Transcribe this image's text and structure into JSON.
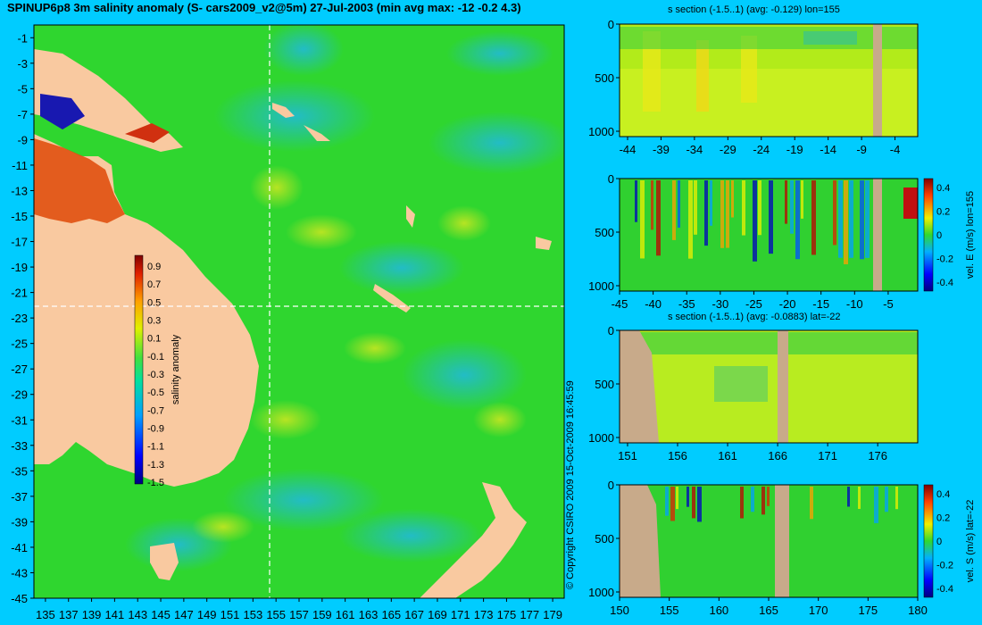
{
  "title": "SPINUP6p8 3m salinity anomaly (S- cars2009_v2@5m) 27-Jul-2003 (min avg max: -12 -0.2 4.3)",
  "copyright": "© Copyright CSIRO 2009  15-Oct-2009 16:45:59",
  "colors": {
    "background": "#00ccff",
    "land": "#f9c9a0",
    "section_land": "#c8aa8a",
    "ocean_base": "#33d633"
  },
  "chart_data": [
    {
      "type": "heatmap",
      "name": "map",
      "title": "SPINUP6p8 3m salinity anomaly (S- cars2009_v2@5m) 27-Jul-2003 (min avg max: -12 -0.2 4.3)",
      "x_ticks": [
        "135",
        "137",
        "139",
        "141",
        "143",
        "145",
        "147",
        "149",
        "151",
        "153",
        "155",
        "157",
        "159",
        "161",
        "163",
        "165",
        "167",
        "169",
        "171",
        "173",
        "175",
        "177",
        "179"
      ],
      "y_ticks": [
        "-1",
        "-3",
        "-5",
        "-7",
        "-9",
        "-11",
        "-13",
        "-15",
        "-17",
        "-19",
        "-21",
        "-23",
        "-25",
        "-27",
        "-29",
        "-31",
        "-33",
        "-35",
        "-37",
        "-39",
        "-41",
        "-43",
        "-45"
      ],
      "xlim": [
        134,
        180
      ],
      "ylim": [
        -45,
        0
      ],
      "section_lon": 155,
      "section_lat": -22,
      "colorbar": {
        "label": "salinity anomaly",
        "ticks": [
          "0.9",
          "0.7",
          "0.5",
          "0.3",
          "0.1",
          "-0.1",
          "-0.3",
          "-0.5",
          "-0.7",
          "-0.9",
          "-1.1",
          "-1.3",
          "-1.5"
        ]
      }
    },
    {
      "type": "heatmap",
      "name": "salinity-section-lon",
      "title": "s section (-1.5..1) (avg: -0.129) lon=155",
      "x_ticks": [
        "-44",
        "-39",
        "-34",
        "-29",
        "-24",
        "-19",
        "-14",
        "-9",
        "-4"
      ],
      "y_ticks": [
        "0",
        "500",
        "1000"
      ]
    },
    {
      "type": "heatmap",
      "name": "velocity-east-section",
      "colorbar_label": "vel. E (m/s) lon=155",
      "x_ticks": [
        "-45",
        "-40",
        "-35",
        "-30",
        "-25",
        "-20",
        "-15",
        "-10",
        "-5"
      ],
      "y_ticks": [
        "0",
        "500",
        "1000"
      ],
      "colorbar_ticks": [
        "0.4",
        "0.2",
        "0",
        "-0.2",
        "-0.4"
      ]
    },
    {
      "type": "heatmap",
      "name": "salinity-section-lat",
      "title": "s section (-1.5..1) (avg: -0.0883) lat=-22",
      "x_ticks": [
        "151",
        "156",
        "161",
        "166",
        "171",
        "176"
      ],
      "y_ticks": [
        "0",
        "500",
        "1000"
      ]
    },
    {
      "type": "heatmap",
      "name": "velocity-south-section",
      "colorbar_label": "vel. S (m/s) lat=-22",
      "x_ticks": [
        "150",
        "155",
        "160",
        "165",
        "170",
        "175",
        "180"
      ],
      "y_ticks": [
        "0",
        "500",
        "1000"
      ],
      "colorbar_ticks": [
        "0.4",
        "0.2",
        "0",
        "-0.2",
        "-0.4"
      ]
    }
  ]
}
